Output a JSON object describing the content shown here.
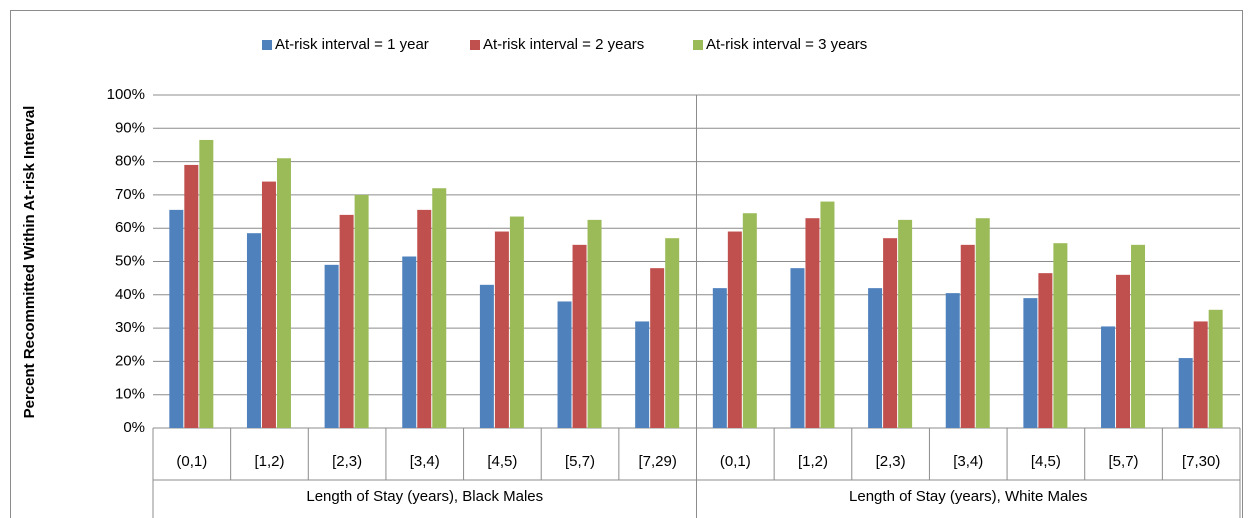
{
  "chart_data": {
    "type": "bar",
    "y_label": "Percent Recommitted Within At-risk Interval",
    "categories": [
      "(0,1)",
      "[1,2)",
      "[2,3)",
      "[3,4)",
      "[4,5)",
      "[5,7)",
      "[7,29)",
      "(0,1)",
      "[1,2)",
      "[2,3)",
      "[3,4)",
      "[4,5)",
      "[5,7)",
      "[7,30)"
    ],
    "category_groups": [
      "Length of Stay (years), Black Males",
      "Length of Stay (years), White Males"
    ],
    "series": [
      {
        "name": "At-risk interval = 1 year",
        "color": "#4f81bd",
        "values": [
          65.5,
          58.5,
          49,
          51.5,
          43,
          38,
          32,
          42,
          48,
          42,
          40.5,
          39,
          30.5,
          21
        ]
      },
      {
        "name": "At-risk interval = 2 years",
        "color": "#c0504d",
        "values": [
          79,
          74,
          64,
          65.5,
          59,
          55,
          48,
          59,
          63,
          57,
          55,
          46.5,
          46,
          32
        ]
      },
      {
        "name": "At-risk interval = 3 years",
        "color": "#9bbb59",
        "values": [
          86.5,
          81,
          70,
          72,
          63.5,
          62.5,
          57,
          64.5,
          68,
          62.5,
          63,
          55.5,
          55,
          35.5
        ]
      }
    ],
    "ylim": [
      0,
      100
    ],
    "yticks": [
      {
        "value": 0,
        "label": "0%"
      },
      {
        "value": 10,
        "label": "10%"
      },
      {
        "value": 20,
        "label": "20%"
      },
      {
        "value": 30,
        "label": "30%"
      },
      {
        "value": 40,
        "label": "40%"
      },
      {
        "value": 50,
        "label": "50%"
      },
      {
        "value": 60,
        "label": "60%"
      },
      {
        "value": 70,
        "label": "70%"
      },
      {
        "value": 80,
        "label": "80%"
      },
      {
        "value": 90,
        "label": "90%"
      },
      {
        "value": 100,
        "label": "100%"
      }
    ],
    "grid": true,
    "legend": "top"
  }
}
